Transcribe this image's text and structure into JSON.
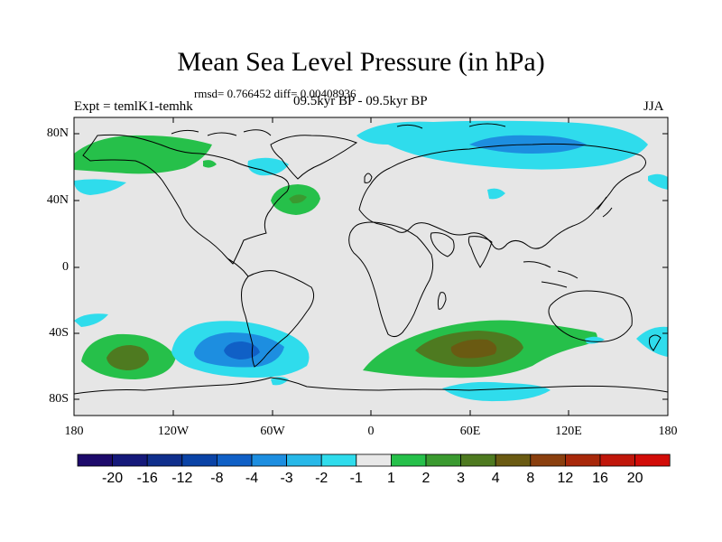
{
  "title": "Mean Sea Level Pressure (in hPa)",
  "stats": "rmsd= 0.766452 diff= 0.00408936",
  "experiment": "Expt = temlK1-temhk",
  "period": "09.5kyr BP - 09.5kyr BP",
  "season": "JJA",
  "y_axis_labels": [
    "80N",
    "40N",
    "0",
    "40S",
    "80S"
  ],
  "x_axis_labels": [
    "180",
    "120W",
    "60W",
    "0",
    "60E",
    "120E",
    "180"
  ],
  "colorbar": {
    "labels": [
      "-20",
      "-16",
      "-12",
      "-8",
      "-4",
      "-3",
      "-2",
      "-1",
      "1",
      "2",
      "3",
      "4",
      "8",
      "12",
      "16",
      "20"
    ],
    "colors": [
      "#1d0a6b",
      "#15197a",
      "#0f2f8c",
      "#0a43a6",
      "#1060c6",
      "#1d8ee0",
      "#27b8e8",
      "#2fdcec",
      "#e8e8e8",
      "#26c04a",
      "#3a9a30",
      "#4e7a20",
      "#6a5a12",
      "#8a3f0e",
      "#a8280a",
      "#c0160a",
      "#d20c08"
    ]
  },
  "colors": {
    "background": "#ffffff",
    "land_outline": "#000000",
    "neutral": "#e6e6e6"
  }
}
